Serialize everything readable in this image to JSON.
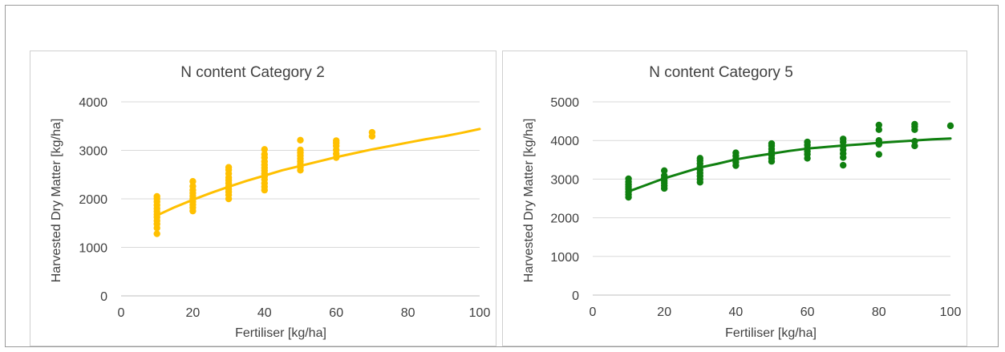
{
  "chart_data": [
    {
      "type": "scatter",
      "title": "N content Category 2",
      "xlabel": "Fertiliser [kg/ha]",
      "ylabel": "Harvested Dry Matter [kg/ha]",
      "xlim": [
        0,
        100
      ],
      "ylim": [
        0,
        4000
      ],
      "xticks": [
        0,
        20,
        40,
        60,
        80,
        100
      ],
      "yticks": [
        0,
        1000,
        2000,
        3000,
        4000
      ],
      "grid": "horizontal",
      "color": "#ffc000",
      "points": [
        [
          10,
          1280
        ],
        [
          10,
          1400
        ],
        [
          10,
          1480
        ],
        [
          10,
          1550
        ],
        [
          10,
          1620
        ],
        [
          10,
          1680
        ],
        [
          10,
          1740
        ],
        [
          10,
          1800
        ],
        [
          10,
          1870
        ],
        [
          10,
          1940
        ],
        [
          10,
          2000
        ],
        [
          10,
          2050
        ],
        [
          20,
          1750
        ],
        [
          20,
          1820
        ],
        [
          20,
          1880
        ],
        [
          20,
          1940
        ],
        [
          20,
          2000
        ],
        [
          20,
          2060
        ],
        [
          20,
          2120
        ],
        [
          20,
          2180
        ],
        [
          20,
          2260
        ],
        [
          20,
          2360
        ],
        [
          30,
          2000
        ],
        [
          30,
          2080
        ],
        [
          30,
          2140
        ],
        [
          30,
          2200
        ],
        [
          30,
          2260
        ],
        [
          30,
          2320
        ],
        [
          30,
          2380
        ],
        [
          30,
          2440
        ],
        [
          30,
          2520
        ],
        [
          30,
          2600
        ],
        [
          30,
          2650
        ],
        [
          40,
          2180
        ],
        [
          40,
          2250
        ],
        [
          40,
          2320
        ],
        [
          40,
          2400
        ],
        [
          40,
          2460
        ],
        [
          40,
          2520
        ],
        [
          40,
          2580
        ],
        [
          40,
          2640
        ],
        [
          40,
          2700
        ],
        [
          40,
          2770
        ],
        [
          40,
          2850
        ],
        [
          40,
          2920
        ],
        [
          40,
          3020
        ],
        [
          50,
          2590
        ],
        [
          50,
          2650
        ],
        [
          50,
          2710
        ],
        [
          50,
          2770
        ],
        [
          50,
          2830
        ],
        [
          50,
          2890
        ],
        [
          50,
          2950
        ],
        [
          50,
          3010
        ],
        [
          50,
          3210
        ],
        [
          60,
          2850
        ],
        [
          60,
          2930
        ],
        [
          60,
          3010
        ],
        [
          60,
          3090
        ],
        [
          60,
          3150
        ],
        [
          60,
          3200
        ],
        [
          70,
          3290
        ],
        [
          70,
          3370
        ]
      ],
      "trendline": {
        "x": [
          10,
          15,
          20,
          25,
          30,
          35,
          40,
          45,
          50,
          55,
          60,
          65,
          70,
          75,
          80,
          85,
          90,
          95,
          100
        ],
        "y": [
          1660,
          1830,
          1980,
          2120,
          2250,
          2370,
          2480,
          2590,
          2680,
          2770,
          2860,
          2940,
          3020,
          3090,
          3160,
          3230,
          3290,
          3360,
          3440
        ]
      }
    },
    {
      "type": "scatter",
      "title": "N content Category 5",
      "xlabel": "Fertiliser [kg/ha]",
      "ylabel": "Harvested Dry Matter [kg/ha]",
      "xlim": [
        0,
        100
      ],
      "ylim": [
        0,
        5000
      ],
      "xticks": [
        0,
        20,
        40,
        60,
        80,
        100
      ],
      "yticks": [
        0,
        1000,
        2000,
        3000,
        4000,
        5000
      ],
      "grid": "horizontal",
      "color": "#108010",
      "points": [
        [
          10,
          2530
        ],
        [
          10,
          2600
        ],
        [
          10,
          2670
        ],
        [
          10,
          2740
        ],
        [
          10,
          2800
        ],
        [
          10,
          2860
        ],
        [
          10,
          2930
        ],
        [
          10,
          3010
        ],
        [
          20,
          2760
        ],
        [
          20,
          2830
        ],
        [
          20,
          2900
        ],
        [
          20,
          2960
        ],
        [
          20,
          3020
        ],
        [
          20,
          3090
        ],
        [
          20,
          3220
        ],
        [
          30,
          2920
        ],
        [
          30,
          3000
        ],
        [
          30,
          3080
        ],
        [
          30,
          3160
        ],
        [
          30,
          3240
        ],
        [
          30,
          3320
        ],
        [
          30,
          3400
        ],
        [
          30,
          3480
        ],
        [
          30,
          3540
        ],
        [
          40,
          3350
        ],
        [
          40,
          3440
        ],
        [
          40,
          3520
        ],
        [
          40,
          3600
        ],
        [
          40,
          3680
        ],
        [
          50,
          3460
        ],
        [
          50,
          3540
        ],
        [
          50,
          3620
        ],
        [
          50,
          3700
        ],
        [
          50,
          3780
        ],
        [
          50,
          3860
        ],
        [
          50,
          3920
        ],
        [
          60,
          3540
        ],
        [
          60,
          3640
        ],
        [
          60,
          3720
        ],
        [
          60,
          3800
        ],
        [
          60,
          3880
        ],
        [
          60,
          3960
        ],
        [
          70,
          3360
        ],
        [
          70,
          3560
        ],
        [
          70,
          3660
        ],
        [
          70,
          3760
        ],
        [
          70,
          3860
        ],
        [
          70,
          3960
        ],
        [
          70,
          4040
        ],
        [
          80,
          3640
        ],
        [
          80,
          3900
        ],
        [
          80,
          4000
        ],
        [
          80,
          4280
        ],
        [
          80,
          4400
        ],
        [
          90,
          3860
        ],
        [
          90,
          3980
        ],
        [
          90,
          4280
        ],
        [
          90,
          4360
        ],
        [
          90,
          4420
        ],
        [
          100,
          4380
        ]
      ],
      "trendline": {
        "x": [
          10,
          15,
          20,
          25,
          30,
          35,
          40,
          45,
          50,
          55,
          60,
          65,
          70,
          75,
          80,
          85,
          90,
          95,
          100
        ],
        "y": [
          2680,
          2850,
          3020,
          3160,
          3300,
          3400,
          3510,
          3590,
          3660,
          3730,
          3790,
          3830,
          3870,
          3900,
          3940,
          3970,
          4000,
          4030,
          4050
        ]
      }
    }
  ]
}
